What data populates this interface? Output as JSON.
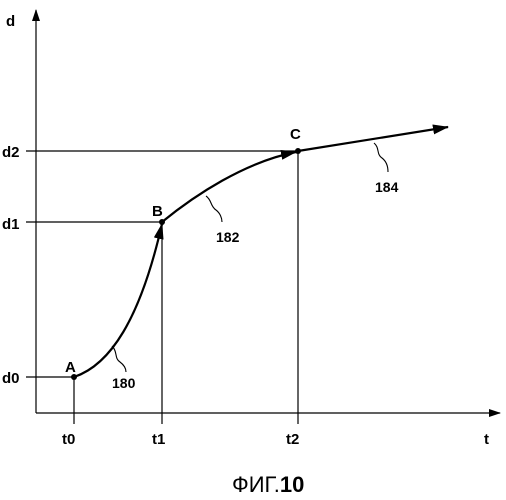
{
  "axes": {
    "y_label": "d",
    "x_label": "t",
    "y_ticks": [
      "d0",
      "d1",
      "d2"
    ],
    "x_ticks": [
      "t0",
      "t1",
      "t2"
    ]
  },
  "points": [
    {
      "id": "A",
      "label": "A"
    },
    {
      "id": "B",
      "label": "B"
    },
    {
      "id": "C",
      "label": "C"
    }
  ],
  "references": {
    "seg_ab": "180",
    "seg_bc": "182",
    "seg_c": "184"
  },
  "caption": {
    "prefix": "ФИГ.",
    "number": "10"
  }
}
